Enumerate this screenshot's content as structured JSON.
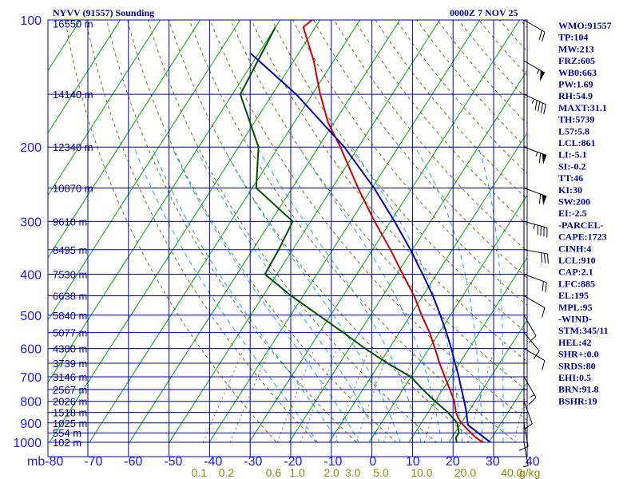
{
  "header": {
    "station": "NYVV (91557) Sounding",
    "time": "0000Z  7 NOV 25"
  },
  "indices": [
    "WMO:91557",
    "TP:104",
    "MW:213",
    "FRZ:605",
    "WB0:663",
    "PW:1.69",
    "RH:54.9",
    "MAXT:31.1",
    "TH:5739",
    "L57:5.8",
    "LCL:861",
    "LI:-5.1",
    "SI:-0.2",
    "TT:46",
    "KI:30",
    "SW:200",
    "EI:-2.5",
    "-PARCEL-",
    "CAPE:1723",
    "CINH:4",
    "LCL:910",
    "CAP:2.1",
    "LFC:885",
    "EL:195",
    "MPL:95",
    "-WIND-",
    "STM:345/11",
    "HEL:42",
    "SHR+:0.0",
    "SRDS:80",
    "EHI:0.5",
    "BRN:91.8",
    "BSHR:19"
  ],
  "colors": {
    "grid": "#0000c0",
    "isotherm": "#00a000",
    "dry_adiabat": "#606000",
    "moist_adiabat": "#00a0e0",
    "temperature": "#d00000",
    "dewpoint": "#005000",
    "parcel": "#0000c0",
    "wind": "#000000",
    "text": "#0000a0"
  },
  "wind_barbs": [
    {
      "p": 100,
      "dir": 300,
      "spd": 20
    },
    {
      "p": 125,
      "dir": 300,
      "spd": 55
    },
    {
      "p": 150,
      "dir": 295,
      "spd": 45
    },
    {
      "p": 200,
      "dir": 290,
      "spd": 65
    },
    {
      "p": 250,
      "dir": 290,
      "spd": 60
    },
    {
      "p": 300,
      "dir": 285,
      "spd": 45
    },
    {
      "p": 350,
      "dir": 280,
      "spd": 30
    },
    {
      "p": 400,
      "dir": 290,
      "spd": 20
    },
    {
      "p": 450,
      "dir": 300,
      "spd": 10
    },
    {
      "p": 500,
      "dir": 330,
      "spd": 10
    },
    {
      "p": 550,
      "dir": 320,
      "spd": 10
    },
    {
      "p": 600,
      "dir": 300,
      "spd": 10
    },
    {
      "p": 700,
      "dir": 330,
      "spd": 15
    },
    {
      "p": 800,
      "dir": 340,
      "spd": 10
    },
    {
      "p": 900,
      "dir": 350,
      "spd": 10
    },
    {
      "p": 1000,
      "dir": 350,
      "spd": 5
    }
  ],
  "chart_data": {
    "type": "line",
    "title": "NYVV (91557) Sounding",
    "subtitle": "0000Z  7 NOV 25",
    "diagram": "skew-T log-p",
    "y_unit": "mb",
    "x_unit": "C",
    "ylim": [
      100,
      1000
    ],
    "xlim": [
      -80,
      40
    ],
    "y_ticks": [
      100,
      200,
      300,
      400,
      500,
      600,
      700,
      800,
      900,
      1000
    ],
    "y_log": true,
    "x_ticks": [
      -80,
      -70,
      -60,
      -50,
      -40,
      -30,
      -20,
      -10,
      0,
      10,
      20,
      30,
      40
    ],
    "x_tick_labels": [
      "mb-80",
      "-70",
      "-60",
      "-50",
      "-40",
      "-30",
      "-20",
      "-10",
      "0",
      "10",
      "20",
      "30",
      "40"
    ],
    "mixing_ratio_labels": [
      {
        "w": 0.1,
        "label": "0.1"
      },
      {
        "w": 0.2,
        "label": "0.2"
      },
      {
        "w": 0.6,
        "label": "0.6"
      },
      {
        "w": 1.0,
        "label": "1.0"
      },
      {
        "w": 2.0,
        "label": "2.0"
      },
      {
        "w": 3.0,
        "label": "3.0"
      },
      {
        "w": 5.0,
        "label": "5.0"
      },
      {
        "w": 10.0,
        "label": "10.0"
      },
      {
        "w": 20.0,
        "label": "20.0"
      },
      {
        "w": 40.0,
        "label": "40.0"
      }
    ],
    "mixing_ratio_unit": "g/kg",
    "height_labels": [
      {
        "p": 102,
        "label": "16550 m"
      },
      {
        "p": 150,
        "label": "14140 m"
      },
      {
        "p": 200,
        "label": "12340 m"
      },
      {
        "p": 250,
        "label": "10870 m"
      },
      {
        "p": 300,
        "label": "9610 m"
      },
      {
        "p": 350,
        "label": "8495 m"
      },
      {
        "p": 400,
        "label": "7530 m"
      },
      {
        "p": 450,
        "label": "6638 m"
      },
      {
        "p": 500,
        "label": "5840 m"
      },
      {
        "p": 550,
        "label": "5077 m"
      },
      {
        "p": 600,
        "label": "4380 m"
      },
      {
        "p": 650,
        "label": "3739 m"
      },
      {
        "p": 700,
        "label": "3146 m"
      },
      {
        "p": 750,
        "label": "2567 m"
      },
      {
        "p": 800,
        "label": "2026 m"
      },
      {
        "p": 850,
        "label": "1518 m"
      },
      {
        "p": 900,
        "label": "1025 m"
      },
      {
        "p": 950,
        "label": "554 m"
      },
      {
        "p": 1000,
        "label": "102 m"
      }
    ],
    "series": [
      {
        "key": "temperature",
        "p": [
          1008,
          1000,
          975,
          950,
          925,
          900,
          875,
          850,
          800,
          750,
          700,
          650,
          600,
          550,
          500,
          450,
          400,
          350,
          300,
          250,
          200,
          175,
          150,
          125,
          104,
          100
        ],
        "t": [
          31.1,
          28.5,
          26.0,
          24.0,
          22.0,
          20.0,
          18.4,
          17.0,
          14.8,
          11.8,
          8.5,
          5.0,
          1.5,
          -2.4,
          -7.2,
          -12.2,
          -18.5,
          -25.5,
          -34.0,
          -43.5,
          -54.5,
          -61.5,
          -68.0,
          -75.0,
          -83.0,
          -82.0
        ]
      },
      {
        "key": "dewpoint",
        "p": [
          1000,
          975,
          950,
          925,
          900,
          850,
          800,
          750,
          700,
          650,
          600,
          550,
          500,
          450,
          400,
          350,
          300,
          250,
          200,
          150,
          104
        ],
        "t": [
          22.0,
          21.0,
          21.0,
          20.0,
          19.0,
          15.0,
          10.0,
          5.0,
          0.0,
          -8.0,
          -16.0,
          -24.0,
          -33.0,
          -43.0,
          -53.0,
          -53.5,
          -54.5,
          -69.0,
          -75.0,
          -88.0,
          -90.0
        ]
      },
      {
        "key": "parcel",
        "p": [
          1008,
          950,
          910,
          885,
          850,
          800,
          750,
          700,
          650,
          600,
          550,
          500,
          450,
          400,
          350,
          300,
          250,
          200,
          150,
          120
        ],
        "t": [
          31.1,
          25.8,
          22.0,
          21.0,
          19.6,
          17.3,
          14.7,
          12.0,
          8.9,
          5.6,
          1.8,
          -2.5,
          -7.5,
          -13.5,
          -20.5,
          -29.0,
          -39.5,
          -53.5,
          -74.0,
          -92.0
        ]
      }
    ]
  }
}
